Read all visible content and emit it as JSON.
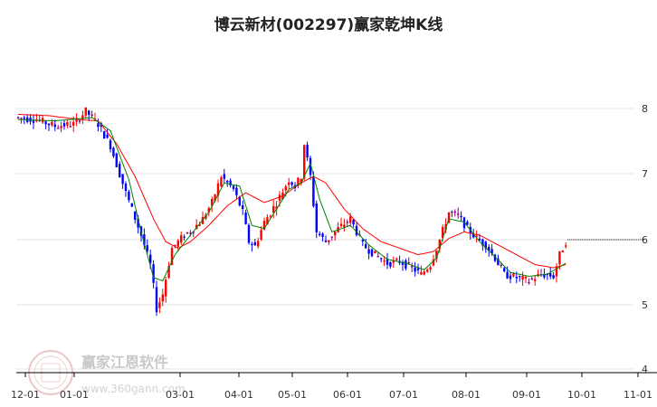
{
  "chart_data": {
    "type": "candlestick",
    "title": "博云新材(002297)赢家乾坤K线",
    "x_ticks": [
      "12-01",
      "01-01",
      "03-01",
      "04-01",
      "05-01",
      "06-01",
      "07-01",
      "08-01",
      "09-01",
      "10-01",
      "11-01"
    ],
    "y_ticks": [
      "4",
      "5",
      "6",
      "7",
      "8"
    ],
    "ylim": [
      4,
      8.4
    ],
    "grid": "horizontal",
    "colors": {
      "up": "#ff0000",
      "down": "#0000ff",
      "neutral": "#800080",
      "ma_short": "#008000",
      "ma_long": "#ff0000",
      "last_price": "#000000"
    },
    "price_path": [
      [
        0,
        7.85
      ],
      [
        6,
        7.82
      ],
      [
        12,
        7.72
      ],
      [
        18,
        7.75
      ],
      [
        22,
        7.95
      ],
      [
        26,
        7.75
      ],
      [
        30,
        7.42
      ],
      [
        35,
        6.7
      ],
      [
        40,
        6.05
      ],
      [
        43,
        5.6
      ],
      [
        45,
        4.92
      ],
      [
        47,
        5.15
      ],
      [
        50,
        5.85
      ],
      [
        54,
        6.05
      ],
      [
        57,
        6.15
      ],
      [
        60,
        6.3
      ],
      [
        63,
        6.55
      ],
      [
        66,
        6.95
      ],
      [
        70,
        6.75
      ],
      [
        73,
        6.4
      ],
      [
        75,
        5.95
      ],
      [
        77,
        5.88
      ],
      [
        80,
        6.25
      ],
      [
        84,
        6.55
      ],
      [
        88,
        6.9
      ],
      [
        90,
        6.8
      ],
      [
        92,
        6.95
      ],
      [
        93,
        7.45
      ],
      [
        95,
        6.95
      ],
      [
        97,
        6.1
      ],
      [
        100,
        5.95
      ],
      [
        104,
        6.15
      ],
      [
        108,
        6.3
      ],
      [
        112,
        5.9
      ],
      [
        116,
        5.75
      ],
      [
        120,
        5.62
      ],
      [
        124,
        5.65
      ],
      [
        128,
        5.55
      ],
      [
        131,
        5.45
      ],
      [
        134,
        5.6
      ],
      [
        137,
        5.98
      ],
      [
        140,
        6.4
      ],
      [
        143,
        6.35
      ],
      [
        146,
        6.15
      ],
      [
        149,
        6.0
      ],
      [
        152,
        5.9
      ],
      [
        155,
        5.7
      ],
      [
        158,
        5.45
      ],
      [
        162,
        5.4
      ],
      [
        166,
        5.35
      ],
      [
        170,
        5.45
      ],
      [
        174,
        5.42
      ],
      [
        176,
        5.75
      ],
      [
        178,
        5.95
      ]
    ],
    "ma_short_path": [
      [
        0,
        7.82
      ],
      [
        12,
        7.8
      ],
      [
        24,
        7.85
      ],
      [
        30,
        7.65
      ],
      [
        36,
        6.9
      ],
      [
        40,
        6.1
      ],
      [
        44,
        5.4
      ],
      [
        47,
        5.35
      ],
      [
        51,
        5.75
      ],
      [
        56,
        6.05
      ],
      [
        62,
        6.4
      ],
      [
        67,
        6.85
      ],
      [
        72,
        6.8
      ],
      [
        76,
        6.2
      ],
      [
        80,
        6.15
      ],
      [
        84,
        6.45
      ],
      [
        88,
        6.75
      ],
      [
        92,
        6.85
      ],
      [
        95,
        7.15
      ],
      [
        98,
        6.6
      ],
      [
        102,
        6.1
      ],
      [
        108,
        6.2
      ],
      [
        114,
        5.9
      ],
      [
        120,
        5.68
      ],
      [
        126,
        5.62
      ],
      [
        132,
        5.52
      ],
      [
        136,
        5.7
      ],
      [
        140,
        6.3
      ],
      [
        145,
        6.25
      ],
      [
        150,
        5.95
      ],
      [
        155,
        5.72
      ],
      [
        160,
        5.48
      ],
      [
        166,
        5.42
      ],
      [
        172,
        5.45
      ],
      [
        178,
        5.62
      ]
    ],
    "ma_long_path": [
      [
        0,
        7.9
      ],
      [
        10,
        7.88
      ],
      [
        20,
        7.82
      ],
      [
        26,
        7.8
      ],
      [
        32,
        7.45
      ],
      [
        38,
        6.95
      ],
      [
        44,
        6.3
      ],
      [
        48,
        5.95
      ],
      [
        52,
        5.85
      ],
      [
        56,
        5.95
      ],
      [
        62,
        6.2
      ],
      [
        68,
        6.5
      ],
      [
        74,
        6.7
      ],
      [
        80,
        6.55
      ],
      [
        86,
        6.65
      ],
      [
        92,
        6.85
      ],
      [
        96,
        6.95
      ],
      [
        100,
        6.85
      ],
      [
        106,
        6.45
      ],
      [
        112,
        6.15
      ],
      [
        118,
        5.95
      ],
      [
        124,
        5.85
      ],
      [
        130,
        5.75
      ],
      [
        135,
        5.8
      ],
      [
        140,
        6.0
      ],
      [
        145,
        6.1
      ],
      [
        150,
        6.05
      ],
      [
        156,
        5.9
      ],
      [
        162,
        5.75
      ],
      [
        168,
        5.6
      ],
      [
        174,
        5.55
      ],
      [
        178,
        5.6
      ]
    ],
    "last_price": 5.98
  },
  "watermark": {
    "brand": "赢家江恩软件",
    "url": "www.360gann.com",
    "seal_text": "赢家江恩"
  }
}
